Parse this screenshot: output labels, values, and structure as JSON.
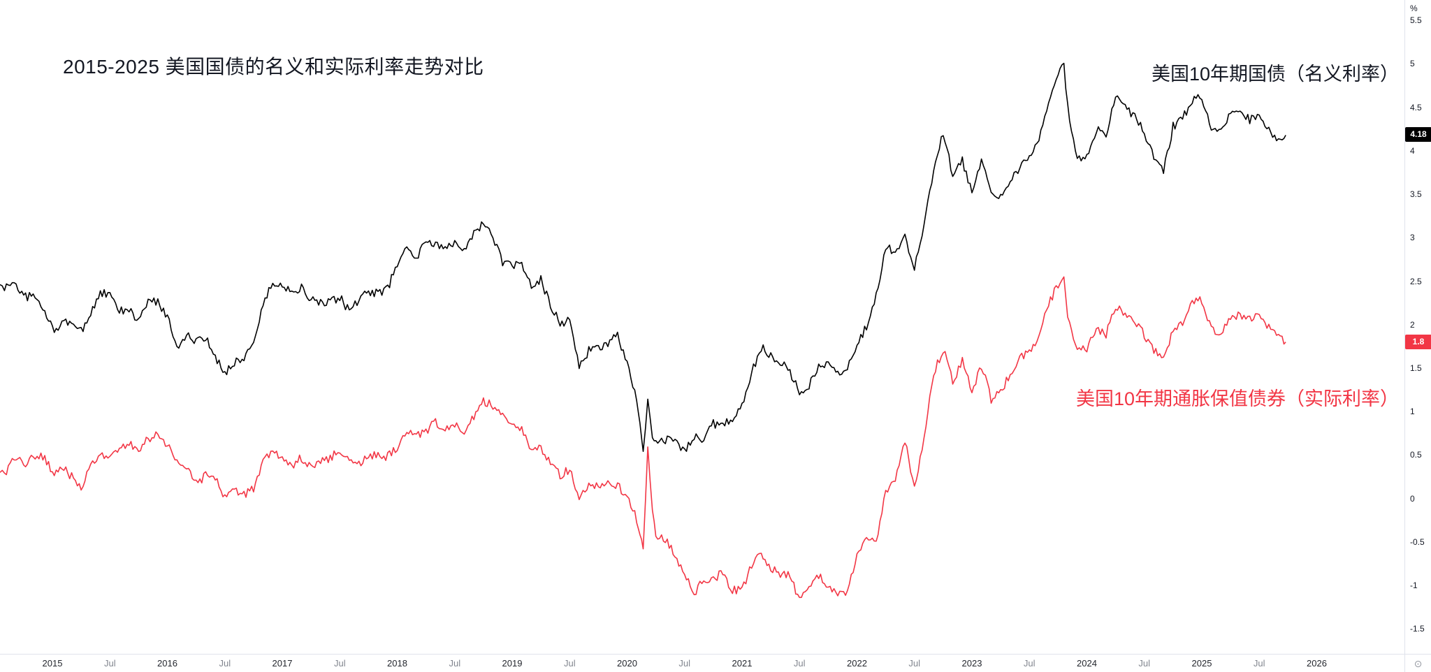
{
  "ui": {
    "axis_settings_glyph": "⊙"
  },
  "chart_data": {
    "type": "line",
    "title": "2015-2025 美国国债的名义和实际利率走势对比",
    "xlabel": "",
    "ylabel": "%",
    "grid": false,
    "legend_position": "annotations-right",
    "x_range": [
      2014.544,
      2026.763
    ],
    "ylim": [
      -1.787,
      5.735
    ],
    "y_ticks": [
      5.5,
      5,
      4.5,
      4,
      3.5,
      3,
      2.5,
      2,
      1.5,
      1,
      0.5,
      0,
      -0.5,
      -1,
      -1.5
    ],
    "x_ticks": [
      {
        "label": "2015",
        "x": 2015
      },
      {
        "label": "Jul",
        "x": 2015.5
      },
      {
        "label": "2016",
        "x": 2016
      },
      {
        "label": "Jul",
        "x": 2016.5
      },
      {
        "label": "2017",
        "x": 2017
      },
      {
        "label": "Jul",
        "x": 2017.5
      },
      {
        "label": "2018",
        "x": 2018
      },
      {
        "label": "Jul",
        "x": 2018.5
      },
      {
        "label": "2019",
        "x": 2019
      },
      {
        "label": "Jul",
        "x": 2019.5
      },
      {
        "label": "2020",
        "x": 2020
      },
      {
        "label": "Jul",
        "x": 2020.5
      },
      {
        "label": "2021",
        "x": 2021
      },
      {
        "label": "Jul",
        "x": 2021.5
      },
      {
        "label": "2022",
        "x": 2022
      },
      {
        "label": "Jul",
        "x": 2022.5
      },
      {
        "label": "2023",
        "x": 2023
      },
      {
        "label": "Jul",
        "x": 2023.5
      },
      {
        "label": "2024",
        "x": 2024
      },
      {
        "label": "Jul",
        "x": 2024.5
      },
      {
        "label": "2025",
        "x": 2025
      },
      {
        "label": "Jul",
        "x": 2025.5
      },
      {
        "label": "2026",
        "x": 2026
      }
    ],
    "x": [
      2014.544,
      2014.583,
      2014.667,
      2014.75,
      2014.833,
      2014.917,
      2015,
      2015.083,
      2015.167,
      2015.25,
      2015.333,
      2015.417,
      2015.5,
      2015.583,
      2015.667,
      2015.75,
      2015.833,
      2015.917,
      2016,
      2016.083,
      2016.167,
      2016.25,
      2016.333,
      2016.417,
      2016.5,
      2016.583,
      2016.667,
      2016.75,
      2016.833,
      2016.917,
      2017,
      2017.083,
      2017.167,
      2017.25,
      2017.333,
      2017.417,
      2017.5,
      2017.583,
      2017.667,
      2017.75,
      2017.833,
      2017.917,
      2018,
      2018.083,
      2018.167,
      2018.25,
      2018.333,
      2018.417,
      2018.5,
      2018.583,
      2018.667,
      2018.75,
      2018.833,
      2018.917,
      2019,
      2019.083,
      2019.167,
      2019.25,
      2019.333,
      2019.417,
      2019.5,
      2019.583,
      2019.667,
      2019.75,
      2019.833,
      2019.917,
      2020,
      2020.083,
      2020.14,
      2020.18,
      2020.22,
      2020.25,
      2020.333,
      2020.417,
      2020.5,
      2020.583,
      2020.667,
      2020.75,
      2020.833,
      2020.917,
      2021,
      2021.083,
      2021.167,
      2021.25,
      2021.333,
      2021.417,
      2021.5,
      2021.583,
      2021.667,
      2021.75,
      2021.833,
      2021.917,
      2022,
      2022.083,
      2022.167,
      2022.25,
      2022.333,
      2022.417,
      2022.5,
      2022.583,
      2022.667,
      2022.75,
      2022.833,
      2022.917,
      2023,
      2023.083,
      2023.167,
      2023.25,
      2023.333,
      2023.417,
      2023.5,
      2023.583,
      2023.667,
      2023.75,
      2023.8,
      2023.833,
      2023.917,
      2024,
      2024.083,
      2024.167,
      2024.25,
      2024.333,
      2024.417,
      2024.5,
      2024.583,
      2024.667,
      2024.75,
      2024.833,
      2024.917,
      2025,
      2025.083,
      2025.167,
      2025.25,
      2025.333,
      2025.417,
      2025.5,
      2025.583,
      2025.667,
      2025.73
    ],
    "series": [
      {
        "name": "美国10年期国债（名义利率）",
        "color": "#000000",
        "last_value": 4.18,
        "last_label": "4.18",
        "values": [
          2.46,
          2.42,
          2.5,
          2.32,
          2.33,
          2.19,
          1.95,
          2.0,
          2.05,
          1.92,
          2.13,
          2.37,
          2.33,
          2.16,
          2.16,
          2.05,
          2.26,
          2.26,
          2.1,
          1.75,
          1.88,
          1.8,
          1.84,
          1.62,
          1.45,
          1.57,
          1.62,
          1.8,
          2.23,
          2.48,
          2.44,
          2.4,
          2.42,
          2.29,
          2.24,
          2.25,
          2.32,
          2.15,
          2.29,
          2.37,
          2.37,
          2.41,
          2.71,
          2.87,
          2.78,
          2.95,
          2.92,
          2.87,
          2.96,
          2.88,
          3.05,
          3.16,
          3.02,
          2.72,
          2.67,
          2.7,
          2.43,
          2.52,
          2.22,
          2.02,
          2.05,
          1.52,
          1.7,
          1.72,
          1.79,
          1.9,
          1.54,
          1.13,
          0.54,
          1.12,
          0.7,
          0.62,
          0.68,
          0.66,
          0.55,
          0.71,
          0.68,
          0.86,
          0.85,
          0.92,
          1.09,
          1.44,
          1.74,
          1.63,
          1.58,
          1.45,
          1.24,
          1.3,
          1.52,
          1.56,
          1.43,
          1.52,
          1.79,
          1.97,
          2.32,
          2.89,
          2.85,
          3.01,
          2.67,
          3.15,
          3.8,
          4.22,
          3.7,
          3.88,
          3.52,
          3.92,
          3.48,
          3.45,
          3.64,
          3.82,
          3.96,
          4.11,
          4.59,
          4.88,
          4.99,
          4.5,
          3.88,
          3.95,
          4.25,
          4.2,
          4.63,
          4.5,
          4.4,
          4.2,
          3.91,
          3.75,
          4.28,
          4.38,
          4.57,
          4.63,
          4.25,
          4.23,
          4.45,
          4.42,
          4.36,
          4.42,
          4.23,
          4.12,
          4.18
        ]
      },
      {
        "name": "美国10年期通胀保值债券（实际利率）",
        "color": "#f23645",
        "last_value": 1.8,
        "last_label": "1.8",
        "values": [
          0.3,
          0.25,
          0.46,
          0.4,
          0.46,
          0.49,
          0.3,
          0.36,
          0.25,
          0.09,
          0.4,
          0.48,
          0.47,
          0.57,
          0.64,
          0.57,
          0.68,
          0.73,
          0.62,
          0.42,
          0.35,
          0.18,
          0.26,
          0.22,
          0.02,
          0.11,
          0.05,
          0.11,
          0.4,
          0.56,
          0.43,
          0.38,
          0.47,
          0.38,
          0.43,
          0.47,
          0.56,
          0.42,
          0.39,
          0.48,
          0.5,
          0.48,
          0.58,
          0.77,
          0.72,
          0.78,
          0.88,
          0.8,
          0.86,
          0.79,
          0.94,
          1.12,
          1.07,
          0.96,
          0.87,
          0.79,
          0.57,
          0.58,
          0.43,
          0.27,
          0.33,
          0.03,
          0.17,
          0.14,
          0.21,
          0.15,
          0.02,
          -0.24,
          -0.57,
          0.55,
          -0.17,
          -0.45,
          -0.46,
          -0.66,
          -0.9,
          -1.08,
          -0.95,
          -0.93,
          -0.85,
          -1.06,
          -1.04,
          -0.78,
          -0.63,
          -0.79,
          -0.87,
          -0.88,
          -1.17,
          -1.03,
          -0.88,
          -1.02,
          -1.12,
          -1.1,
          -0.64,
          -0.45,
          -0.5,
          0.1,
          0.19,
          0.67,
          0.11,
          0.72,
          1.45,
          1.72,
          1.35,
          1.58,
          1.23,
          1.53,
          1.14,
          1.22,
          1.44,
          1.61,
          1.69,
          1.84,
          2.24,
          2.47,
          2.5,
          2.11,
          1.72,
          1.73,
          1.95,
          1.88,
          2.22,
          2.12,
          2.05,
          1.88,
          1.72,
          1.59,
          1.95,
          2.0,
          2.24,
          2.29,
          1.95,
          1.9,
          2.07,
          2.12,
          2.08,
          2.12,
          1.98,
          1.85,
          1.8
        ]
      }
    ]
  }
}
